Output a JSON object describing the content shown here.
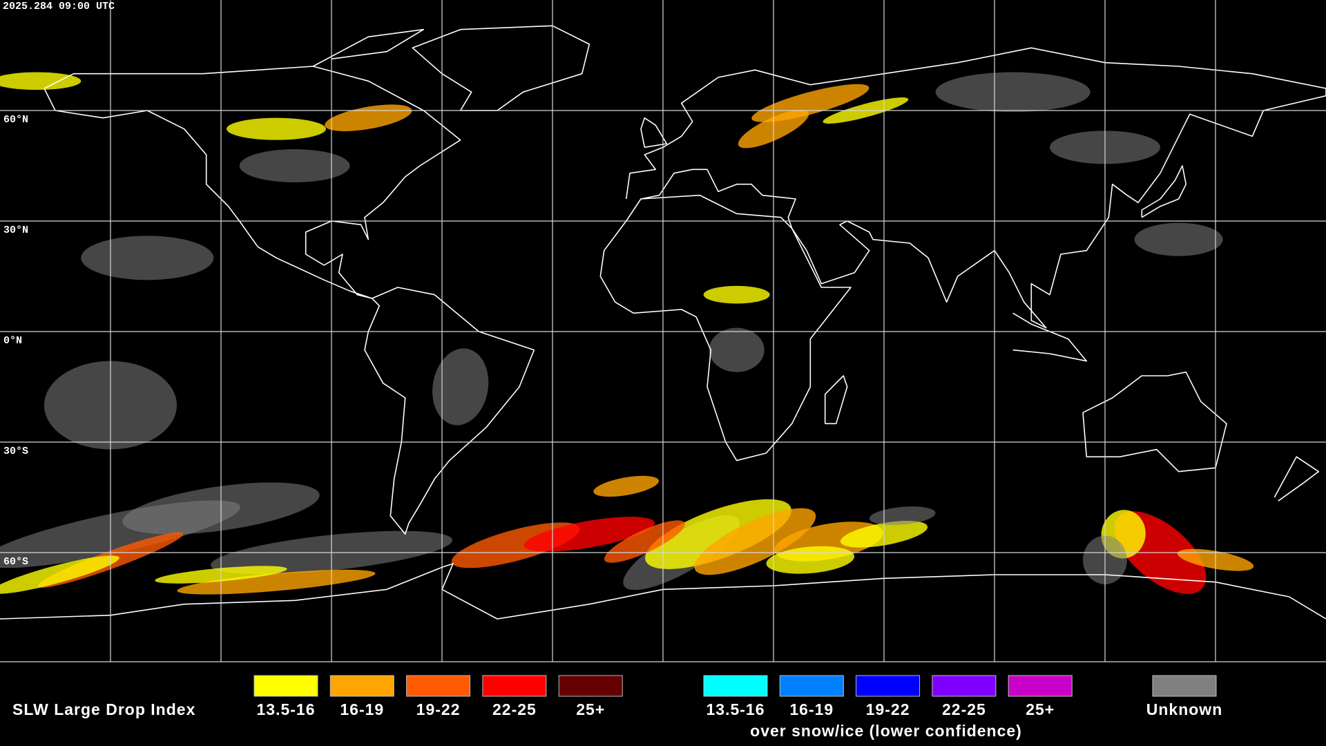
{
  "header": {
    "timestamp": "2025.284 09:00 UTC"
  },
  "map": {
    "latitude_labels": [
      "60°N",
      "30°N",
      "0°N",
      "30°S",
      "60°S"
    ]
  },
  "legend": {
    "title": "SLW Large Drop Index",
    "liquid": [
      {
        "label": "13.5-16",
        "color": "#ffff00"
      },
      {
        "label": "16-19",
        "color": "#ffa500"
      },
      {
        "label": "19-22",
        "color": "#ff5a00"
      },
      {
        "label": "22-25",
        "color": "#ff0000"
      },
      {
        "label": "25+",
        "color": "#640000"
      }
    ],
    "snow_ice": [
      {
        "label": "13.5-16",
        "color": "#00ffff"
      },
      {
        "label": "16-19",
        "color": "#0080ff"
      },
      {
        "label": "19-22",
        "color": "#0000ff"
      },
      {
        "label": "22-25",
        "color": "#8000ff"
      },
      {
        "label": "25+",
        "color": "#c800c8"
      }
    ],
    "snow_ice_caption": "over snow/ice (lower confidence)",
    "unknown": {
      "label": "Unknown",
      "color": "#808080"
    }
  }
}
